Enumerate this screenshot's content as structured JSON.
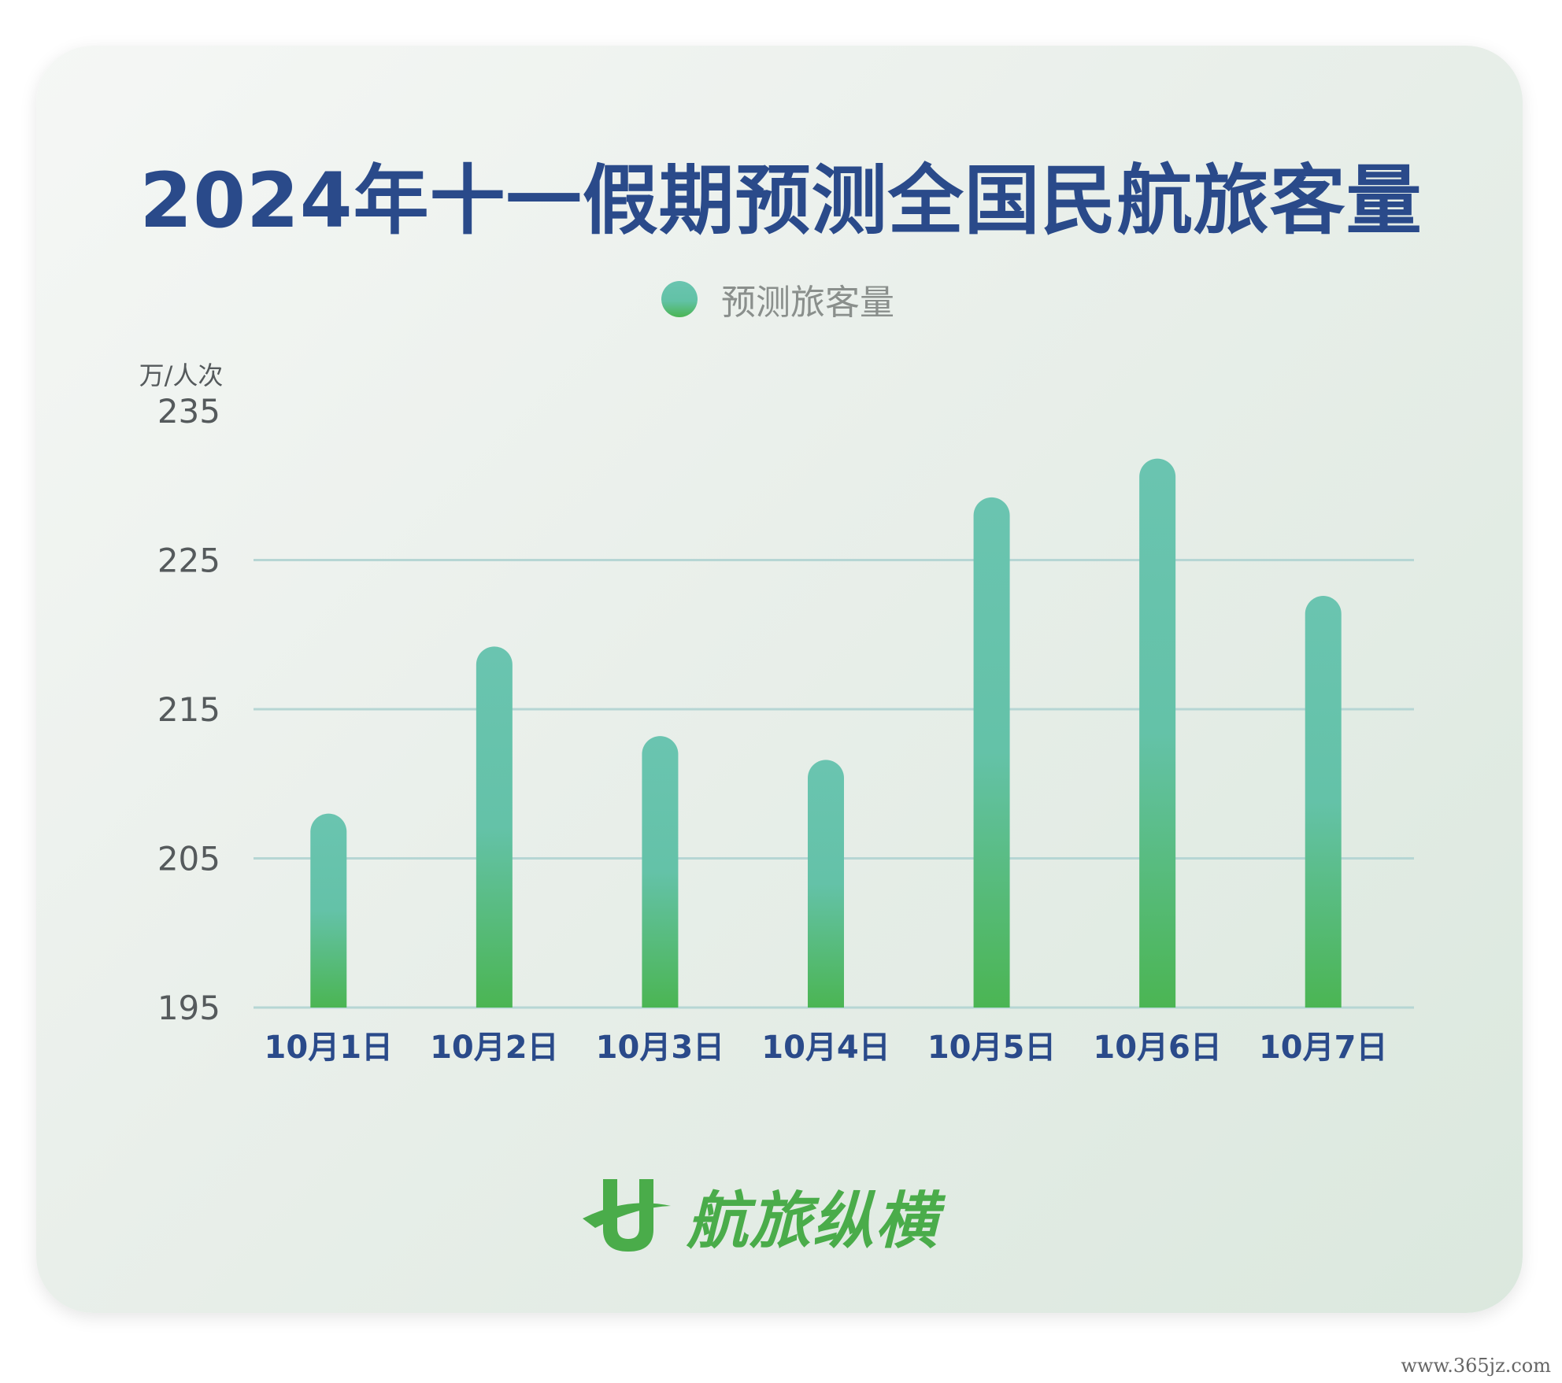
{
  "chart_data": {
    "type": "bar",
    "title": "2024年十一假期预测全国民航旅客量",
    "ylabel": "万/人次",
    "xlabel": "",
    "ylim": [
      195,
      235
    ],
    "yticks": [
      "195",
      "205",
      "215",
      "225",
      "235"
    ],
    "gridlines": [
      205,
      215,
      225
    ],
    "legend": {
      "position": "top-center"
    },
    "categories": [
      "10月1日",
      "10月2日",
      "10月3日",
      "10月4日",
      "10月5日",
      "10月6日",
      "10月7日"
    ],
    "series": [
      {
        "name": "预测旅客量",
        "values": [
          208,
          219.2,
          213.2,
          211.6,
          229.2,
          231.8,
          222.6
        ]
      }
    ]
  },
  "colors": {
    "title": "#2a4a8a",
    "bar_top": "#6ac4b0",
    "bar_bottom": "#4bb553",
    "grid": "#b6d6d4",
    "logo": "#4aac4a"
  },
  "logo": {
    "icon": "hangluzongheng-logo-icon",
    "text": "航旅纵横"
  },
  "watermark": "www.365jz.com"
}
